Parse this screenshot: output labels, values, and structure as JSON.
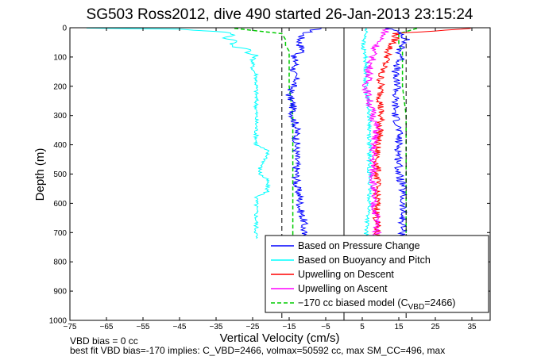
{
  "chart_data": {
    "type": "line",
    "title": "SG503 Ross2012, dive 490 started 26-Jan-2013 23:15:24",
    "xlabel": "Vertical Velocity (cm/s)",
    "ylabel": "Depth (m)",
    "xlim": [
      -75,
      40
    ],
    "ylim": [
      1000,
      0
    ],
    "y_reversed": true,
    "grid": false,
    "legend_placement": "lower-right",
    "xticks": [
      -75,
      -65,
      -55,
      -45,
      -35,
      -25,
      -15,
      -5,
      5,
      15,
      25,
      35
    ],
    "yticks": [
      0,
      100,
      200,
      300,
      400,
      500,
      600,
      700,
      800,
      900,
      1000
    ],
    "reference_lines": [
      {
        "x": 0,
        "style": "solid",
        "color": "#000000"
      },
      {
        "x": -17,
        "style": "dashed",
        "color": "#000000"
      },
      {
        "x": 17,
        "style": "dashed",
        "color": "#000000"
      }
    ],
    "series": [
      {
        "name": "Based on Pressure Change",
        "color": "#0000ff",
        "style": "solid",
        "segments": [
          {
            "depth": [
              2,
              20,
              40,
              60,
              80,
              100,
              120,
              150,
              180,
              200,
              230,
              260,
              300,
              340,
              380,
              420,
              460,
              500,
              540,
              580,
              620,
              660,
              700,
              720
            ],
            "x": [
              -7,
              -11,
              -12,
              -12,
              -11,
              -14,
              -13,
              -14,
              -13,
              -14,
              -15,
              -14,
              -14,
              -13,
              -13,
              -13,
              -13,
              -13,
              -13,
              -12,
              -12,
              -11,
              -11,
              -12
            ]
          },
          {
            "depth": [
              2,
              20,
              40,
              60,
              80,
              100,
              120,
              150,
              180,
              200,
              230,
              260,
              300,
              340,
              380,
              420,
              460,
              500,
              540,
              580,
              620,
              660,
              700,
              720
            ],
            "x": [
              12,
              16,
              17,
              16,
              15,
              16,
              15,
              14,
              14,
              15,
              14,
              14,
              14,
              15,
              15,
              15,
              15,
              15,
              16,
              16,
              16,
              16,
              16,
              16
            ]
          }
        ]
      },
      {
        "name": "Based on Buoyancy and Pitch",
        "color": "#00ffff",
        "style": "solid",
        "segments": [
          {
            "depth": [
              1,
              5,
              15,
              25,
              35,
              45,
              55,
              65,
              75,
              85,
              95,
              110,
              125,
              140,
              160,
              200,
              250,
              300,
              350,
              400,
              420,
              440,
              480,
              500,
              520,
              560,
              580,
              600,
              650,
              700,
              720
            ],
            "x": [
              -70,
              -45,
              -32,
              -30,
              -33,
              -29,
              -31,
              -30,
              -25,
              -27,
              -24,
              -25,
              -25,
              -25,
              -24,
              -24,
              -24,
              -24,
              -24,
              -24,
              -21,
              -21,
              -23,
              -23,
              -21,
              -21,
              -24,
              -24,
              -24,
              -24,
              -24
            ]
          },
          {
            "depth": [
              2,
              30,
              60,
              100,
              150,
              200,
              300,
              400,
              500,
              600,
              700,
              720
            ],
            "x": [
              6,
              6,
              5,
              6,
              6,
              6,
              7,
              7,
              7,
              7,
              6,
              6
            ]
          }
        ]
      },
      {
        "name": "Upwelling on Descent",
        "color": "#ff0000",
        "style": "solid",
        "segments": [
          {
            "depth": [
              2,
              20,
              40,
              60,
              80,
              100,
              130,
              160,
              200,
              250,
              300,
              350,
              400,
              450,
              500,
              550,
              600,
              650,
              700,
              720
            ],
            "x": [
              35,
              14,
              14,
              13,
              12,
              12,
              11,
              10,
              10,
              10,
              10,
              10,
              9,
              9,
              9,
              9,
              9,
              9,
              9,
              9
            ]
          }
        ]
      },
      {
        "name": "Upwelling on Ascent",
        "color": "#ff00ff",
        "style": "solid",
        "segments": [
          {
            "depth": [
              2,
              20,
              40,
              60,
              80,
              100,
              130,
              160,
              200,
              250,
              300,
              350,
              400,
              450,
              500,
              550,
              600,
              650,
              700,
              720
            ],
            "x": [
              12,
              11,
              10,
              9,
              8,
              8,
              7,
              7,
              6,
              7,
              8,
              9,
              8,
              8,
              8,
              8,
              8,
              9,
              9,
              9
            ]
          }
        ]
      },
      {
        "name": "-170 cc biased model (C_VBD=2466)",
        "color": "#00cc00",
        "style": "dashed",
        "segments": [
          {
            "depth": [
              2,
              20,
              40,
              60,
              80,
              100,
              150,
              200,
              300,
              400,
              500,
              600,
              700,
              720
            ],
            "x": [
              -30,
              -17,
              -16,
              -16,
              -15,
              -15,
              -15,
              -15,
              -14,
              -14,
              -14,
              -14,
              -14,
              -14
            ]
          },
          {
            "depth": [
              2,
              20,
              40,
              60,
              80,
              100,
              150,
              200,
              300,
              400,
              500,
              600,
              700,
              720
            ],
            "x": [
              20,
              15,
              15,
              15,
              16,
              16,
              16,
              16,
              17,
              17,
              17,
              17,
              17,
              17
            ]
          }
        ]
      }
    ]
  },
  "legend": {
    "entries": [
      {
        "text": "Based on Pressure Change",
        "color": "#0000ff",
        "dashed": false
      },
      {
        "text": "Based on Buoyancy and Pitch",
        "color": "#00ffff",
        "dashed": false
      },
      {
        "text": "Upwelling on Descent",
        "color": "#ff0000",
        "dashed": false
      },
      {
        "text": "Upwelling on Ascent",
        "color": "#ff00ff",
        "dashed": false
      }
    ],
    "model_prefix": "−170 cc biased model (C",
    "model_sub": "VBD",
    "model_suffix": "=2466)",
    "model_color": "#00cc00"
  },
  "footer": {
    "line1": "VBD bias = 0 cc",
    "line2": "best fit VBD bias=-170 implies: C_VBD=2466, volmax=50592 cc, max SM_CC=496, max"
  }
}
